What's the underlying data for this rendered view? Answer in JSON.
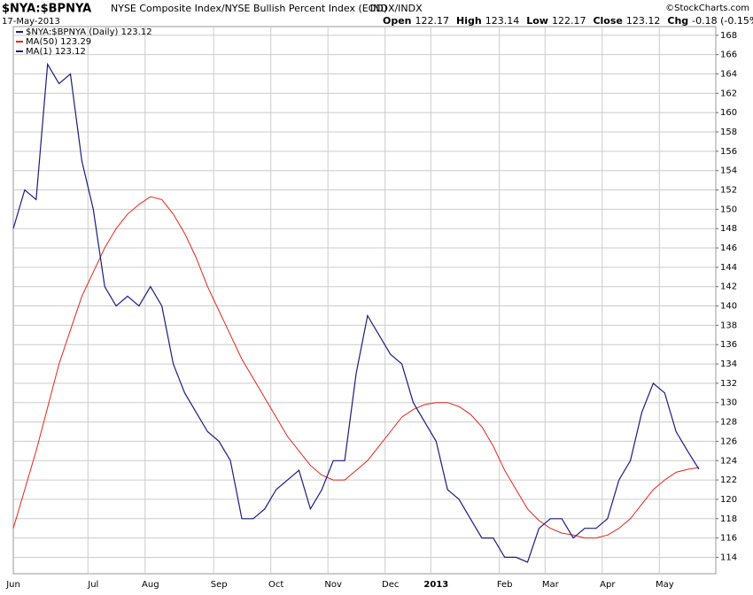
{
  "header": {
    "symbol": "$NYA:$BPNYA",
    "description": "NYSE Composite Index/NYSE Bullish Percent Index (EOD)",
    "exchange": "INDX/INDX",
    "date": "17-May-2013",
    "credit": "©StockCharts.com",
    "quote": [
      {
        "label": "Open",
        "value": "122.17"
      },
      {
        "label": "High",
        "value": "123.14"
      },
      {
        "label": "Low",
        "value": "122.17"
      },
      {
        "label": "Close",
        "value": "123.12"
      },
      {
        "label": "Chg",
        "value": "-0.18 (-0.15%)"
      }
    ]
  },
  "chart_data": {
    "type": "line",
    "categories": [
      "Jun",
      null,
      null,
      null,
      null,
      null,
      null,
      "Jul",
      null,
      null,
      null,
      null,
      "Aug",
      null,
      null,
      null,
      null,
      null,
      "Sep",
      null,
      null,
      null,
      null,
      "Oct",
      null,
      null,
      null,
      null,
      "Nov",
      null,
      null,
      null,
      null,
      "Dec",
      null,
      null,
      null,
      "2013",
      null,
      null,
      null,
      null,
      null,
      "Feb",
      null,
      null,
      null,
      "Mar",
      null,
      null,
      null,
      null,
      "Apr",
      null,
      null,
      null,
      null,
      "May",
      null,
      null,
      null
    ],
    "series": [
      {
        "name": "$NYA:$BPNYA (Daily) 123.12",
        "color": "#1c1c80",
        "values": [
          148,
          152,
          151,
          165,
          163,
          164,
          155,
          150,
          142,
          140,
          141,
          140,
          142,
          140,
          134,
          131,
          129,
          127,
          126,
          124,
          118,
          118,
          119,
          121,
          122,
          123,
          119,
          121,
          124,
          124,
          133,
          139,
          137,
          135,
          134,
          130,
          128,
          126,
          121,
          120,
          118,
          116,
          116,
          114,
          114,
          113.5,
          117,
          118,
          118,
          116,
          117,
          117,
          118,
          122,
          124,
          129,
          132,
          131,
          127,
          125,
          123.12
        ]
      },
      {
        "name": "MA(50) 123.29",
        "color": "#e8241c",
        "values": [
          117,
          121,
          125,
          129.5,
          134,
          137.5,
          141,
          143.5,
          146,
          148,
          149.5,
          150.5,
          151.3,
          151,
          149.5,
          147.5,
          145,
          142,
          139.5,
          137,
          134.5,
          132.5,
          130.5,
          128.5,
          126.5,
          125,
          123.5,
          122.5,
          122,
          122,
          123,
          124,
          125.5,
          127,
          128.5,
          129.3,
          129.8,
          130,
          130,
          129.6,
          128.8,
          127.5,
          125.5,
          123,
          121,
          119,
          117.8,
          117,
          116.5,
          116.3,
          116,
          116,
          116.3,
          117,
          118,
          119.5,
          121,
          122,
          122.8,
          123.1,
          123.29
        ]
      },
      {
        "name": "MA(1) 123.12",
        "color": "#1c1c80"
      }
    ],
    "ylim": [
      112.3,
      168.9
    ],
    "yticks": [
      114,
      116,
      118,
      120,
      122,
      124,
      126,
      128,
      130,
      132,
      134,
      136,
      138,
      140,
      142,
      144,
      146,
      148,
      150,
      152,
      154,
      156,
      158,
      160,
      162,
      164,
      166,
      168
    ],
    "grid": true
  }
}
